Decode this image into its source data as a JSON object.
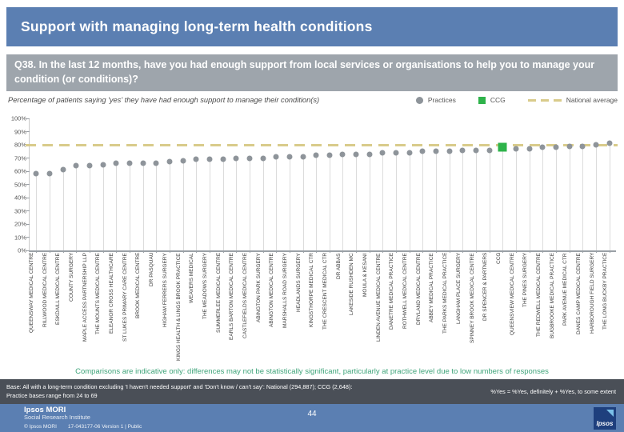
{
  "slide": {
    "title": "Support with managing long-term health conditions",
    "question": "Q38. In the last 12 months, have you had enough support from local services or organisations to help you to manage your condition (or conditions)?",
    "page_number": "44"
  },
  "chart_data": {
    "type": "scatter",
    "title": "Percentage of patients saying 'yes' they have had enough support to manage their condition(s)",
    "legend": {
      "practices": "Practices",
      "ccg": "CCG",
      "national_average": "National average"
    },
    "ylim": [
      0,
      100
    ],
    "yticks": [
      0,
      10,
      20,
      30,
      40,
      50,
      60,
      70,
      80,
      90,
      100
    ],
    "ytick_suffix": "%",
    "grid": false,
    "national_average": 80,
    "ccg_index": 35,
    "categories": [
      "QUEENSWAY MEDICAL CENTRE",
      "RILLWOOD MEDICAL CENTRE",
      "ESKDAILL MEDICAL CENTRE",
      "COUNTY SURGERY",
      "MAPLE ACCESS PARTNERSHIP LLP",
      "THE MOUNTS MEDICAL CENTRE",
      "ELEANOR CROSS HEALTHCARE",
      "ST LUKES PRIMARY CARE CENTRE",
      "BROOK MEDICAL CENTRE",
      "DR PASQUAU",
      "HIGHAM FERRERS SURGERY",
      "KINGS HEALTH & LINGS BROOK PRACTICE",
      "WEAVERS MEDICAL",
      "THE MEADOWS SURGERY",
      "SUMMERLEE MEDICAL CENTRE",
      "EARLS BARTON MEDICAL CENTRE",
      "CASTLEFIELDS MEDICAL CENTRE",
      "ABINGTON PARK SURGERY",
      "ABINGTON MEDICAL CENTRE",
      "MARSHALLS ROAD SURGERY",
      "HEADLANDS SURGERY",
      "KINGSTHORPE MEDICAL CTR",
      "THE CRESCENT MEDICAL CTR",
      "DR ABBAS",
      "LAKESIDE RUSHDEN MC",
      "MOULA & KESANI",
      "LINDEN AVENUE MEDICAL CENTRE",
      "DANETRE MEDICAL PRACTICE",
      "ROTHWELL MEDICAL CENTRE",
      "DRYLAND MEDICAL CENTRE",
      "ABBEY MEDICAL PRACTICE",
      "THE PARKS MEDICAL PRACTICE",
      "LANGHAM PLACE SURGERY",
      "SPINNEY BROOK MEDICAL CENTRE",
      "DR SPENCER & PARTNERS",
      "CCG",
      "QUEENSVIEW MEDICAL CENTRE",
      "THE PINES SURGERY",
      "THE REDWELL MEDICAL CENTRE",
      "BUGBROOKE MEDICAL PRACTICE",
      "PARK AVENUE MEDICAL CTR",
      "DANES CAMP MEDICAL CENTRE",
      "HARBOROUGH FIELD SURGERY",
      "THE LONG BUCKBY PRACTICE"
    ],
    "values": [
      58,
      58,
      61,
      64,
      64,
      65,
      66,
      66,
      66,
      66,
      67,
      68,
      69,
      69,
      69,
      70,
      70,
      70,
      71,
      71,
      71,
      72,
      72,
      73,
      73,
      73,
      74,
      74,
      74,
      75,
      75,
      75,
      76,
      76,
      76,
      78,
      77,
      77,
      78,
      78,
      79,
      79,
      80,
      81
    ],
    "colors": {
      "practice": "#8e949a",
      "ccg": "#2eb34a",
      "national": "#d9cb8b",
      "stem": "#dcdcdc"
    }
  },
  "footnotes": {
    "comparison_note": "Comparisons are indicative only: differences may not be statistically significant, particularly at practice level due to low numbers of responses",
    "base_line1": "Base: All with a long-term condition excluding 'I haven't needed support' and 'Don't know / can't say': National (294,887); CCG (2,648):",
    "base_line2": "Practice bases range from 24 to 69",
    "yes_definition": "%Yes = %Yes, definitely + %Yes, to some extent"
  },
  "footer": {
    "brand_line1": "Ipsos MORI",
    "brand_line2": "Social Research Institute",
    "copyright": "© Ipsos MORI",
    "doc_ref": "17-043177-06 Version 1 | Public",
    "logo_text": "Ipsos"
  }
}
